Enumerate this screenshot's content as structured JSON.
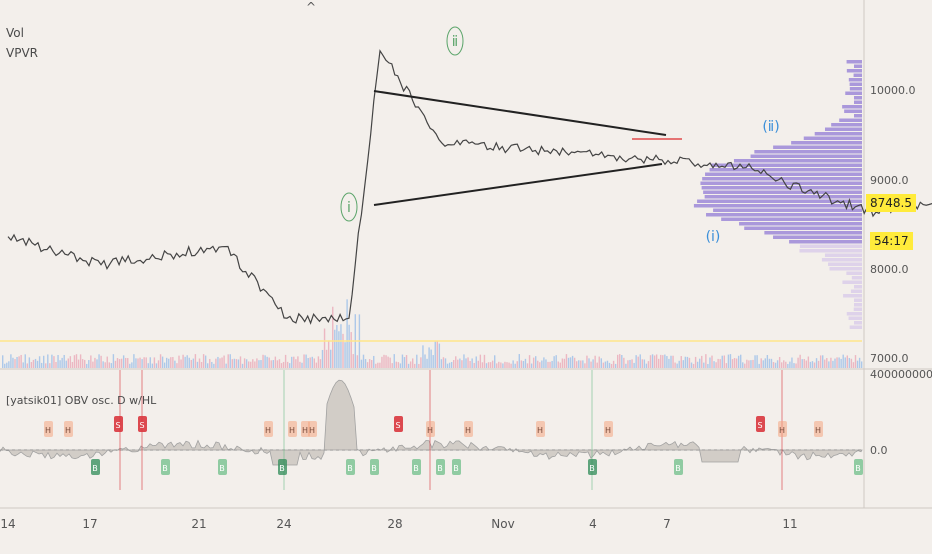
{
  "overlays": {
    "vol_label": "Vol",
    "vpvr_label": "VPVR",
    "top_marker": "^"
  },
  "price_badge": "8748.5",
  "countdown_badge": "54:17",
  "indicator_title": "[yatsik01] OBV osc. D w/HL",
  "colors": {
    "background": "#f3efeb",
    "price_line": "#444444",
    "trendline": "#222222",
    "wave_green": "#5aa469",
    "wave_blue": "#3b8fd9",
    "vpvr": "#9c88d8",
    "vpvr_light": "#d9cdea",
    "high_marker": "#f4a582",
    "low_marker": "#6fbf8a",
    "buy_signal": "#2e8b57",
    "sell_signal": "#d9363e",
    "price_badge": "#ffeb3b",
    "resistance": "#e57373"
  },
  "chart_data": [
    {
      "type": "line",
      "title": "",
      "y_ticks": [
        "10000.0",
        "9000.0",
        "8000.0",
        "7000.0"
      ],
      "x_ticks": [
        "14",
        "17",
        "21",
        "24",
        "28",
        "Nov",
        "4",
        "7",
        "11"
      ],
      "ylim": [
        6900,
        10850
      ],
      "key_prices": [
        {
          "date": "Oct 14",
          "value": 8350
        },
        {
          "date": "Oct 17",
          "value": 8040
        },
        {
          "date": "Oct 21",
          "value": 8240
        },
        {
          "date": "Oct 23",
          "value": 7450
        },
        {
          "date": "Oct 25",
          "value": 7450
        },
        {
          "date": "Oct 26",
          "value": 10400
        },
        {
          "date": "Oct 28",
          "value": 9380
        },
        {
          "date": "Nov 4",
          "value": 9200
        },
        {
          "date": "Nov 7",
          "value": 9100
        },
        {
          "date": "Nov 9",
          "value": 8820
        },
        {
          "date": "Nov 11",
          "value": 8620
        },
        {
          "date": "Nov 13",
          "value": 8748.5
        }
      ],
      "wave_labels": [
        {
          "text": "ⅰ",
          "color": "green"
        },
        {
          "text": "ⅱ",
          "color": "green"
        },
        {
          "text": "(ⅰ)",
          "color": "blue"
        },
        {
          "text": "(ⅱ)",
          "color": "blue"
        }
      ]
    },
    {
      "type": "area",
      "title": "[yatsik01] OBV osc. D w/HL",
      "y_ticks": [
        "4000000000.0",
        "0.0"
      ],
      "signals_high": [
        "H",
        "H",
        "S",
        "S",
        "H",
        "H",
        "H",
        "H",
        "S",
        "H",
        "H",
        "H",
        "H",
        "S",
        "H"
      ],
      "signals_low": [
        "B",
        "B",
        "B",
        "B",
        "B",
        "B",
        "B",
        "B",
        "B",
        "B",
        "B",
        "B",
        "B"
      ]
    }
  ]
}
